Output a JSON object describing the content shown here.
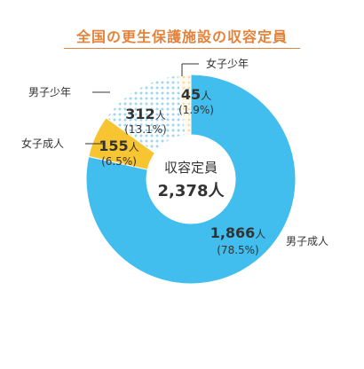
{
  "title": "全国の更生保護施設の収容定員",
  "colors": {
    "title": "#e4833b",
    "rule": "#e4833b",
    "leader": "#333333"
  },
  "chart_data": {
    "type": "pie",
    "style": "donut",
    "center_label": "収容定員",
    "center_value": "2,378人",
    "total": 2378,
    "unit": "人",
    "slices": [
      {
        "label": "男子成人",
        "value": 1866,
        "value_text": "1,866",
        "percent": 78.5,
        "percent_text": "(78.5%)",
        "color": "#41bdee",
        "pattern": "solid"
      },
      {
        "label": "女子成人",
        "value": 155,
        "value_text": "155",
        "percent": 6.5,
        "percent_text": "(6.5%)",
        "color": "#f7c531",
        "pattern": "solid"
      },
      {
        "label": "男子少年",
        "value": 312,
        "value_text": "312",
        "percent": 13.1,
        "percent_text": "(13.1%)",
        "color": "#b7e2f4",
        "pattern": "dots"
      },
      {
        "label": "女子少年",
        "value": 45,
        "value_text": "45",
        "percent": 1.9,
        "percent_text": "(1.9%)",
        "color": "#fdf0c4",
        "pattern": "dots"
      }
    ]
  }
}
